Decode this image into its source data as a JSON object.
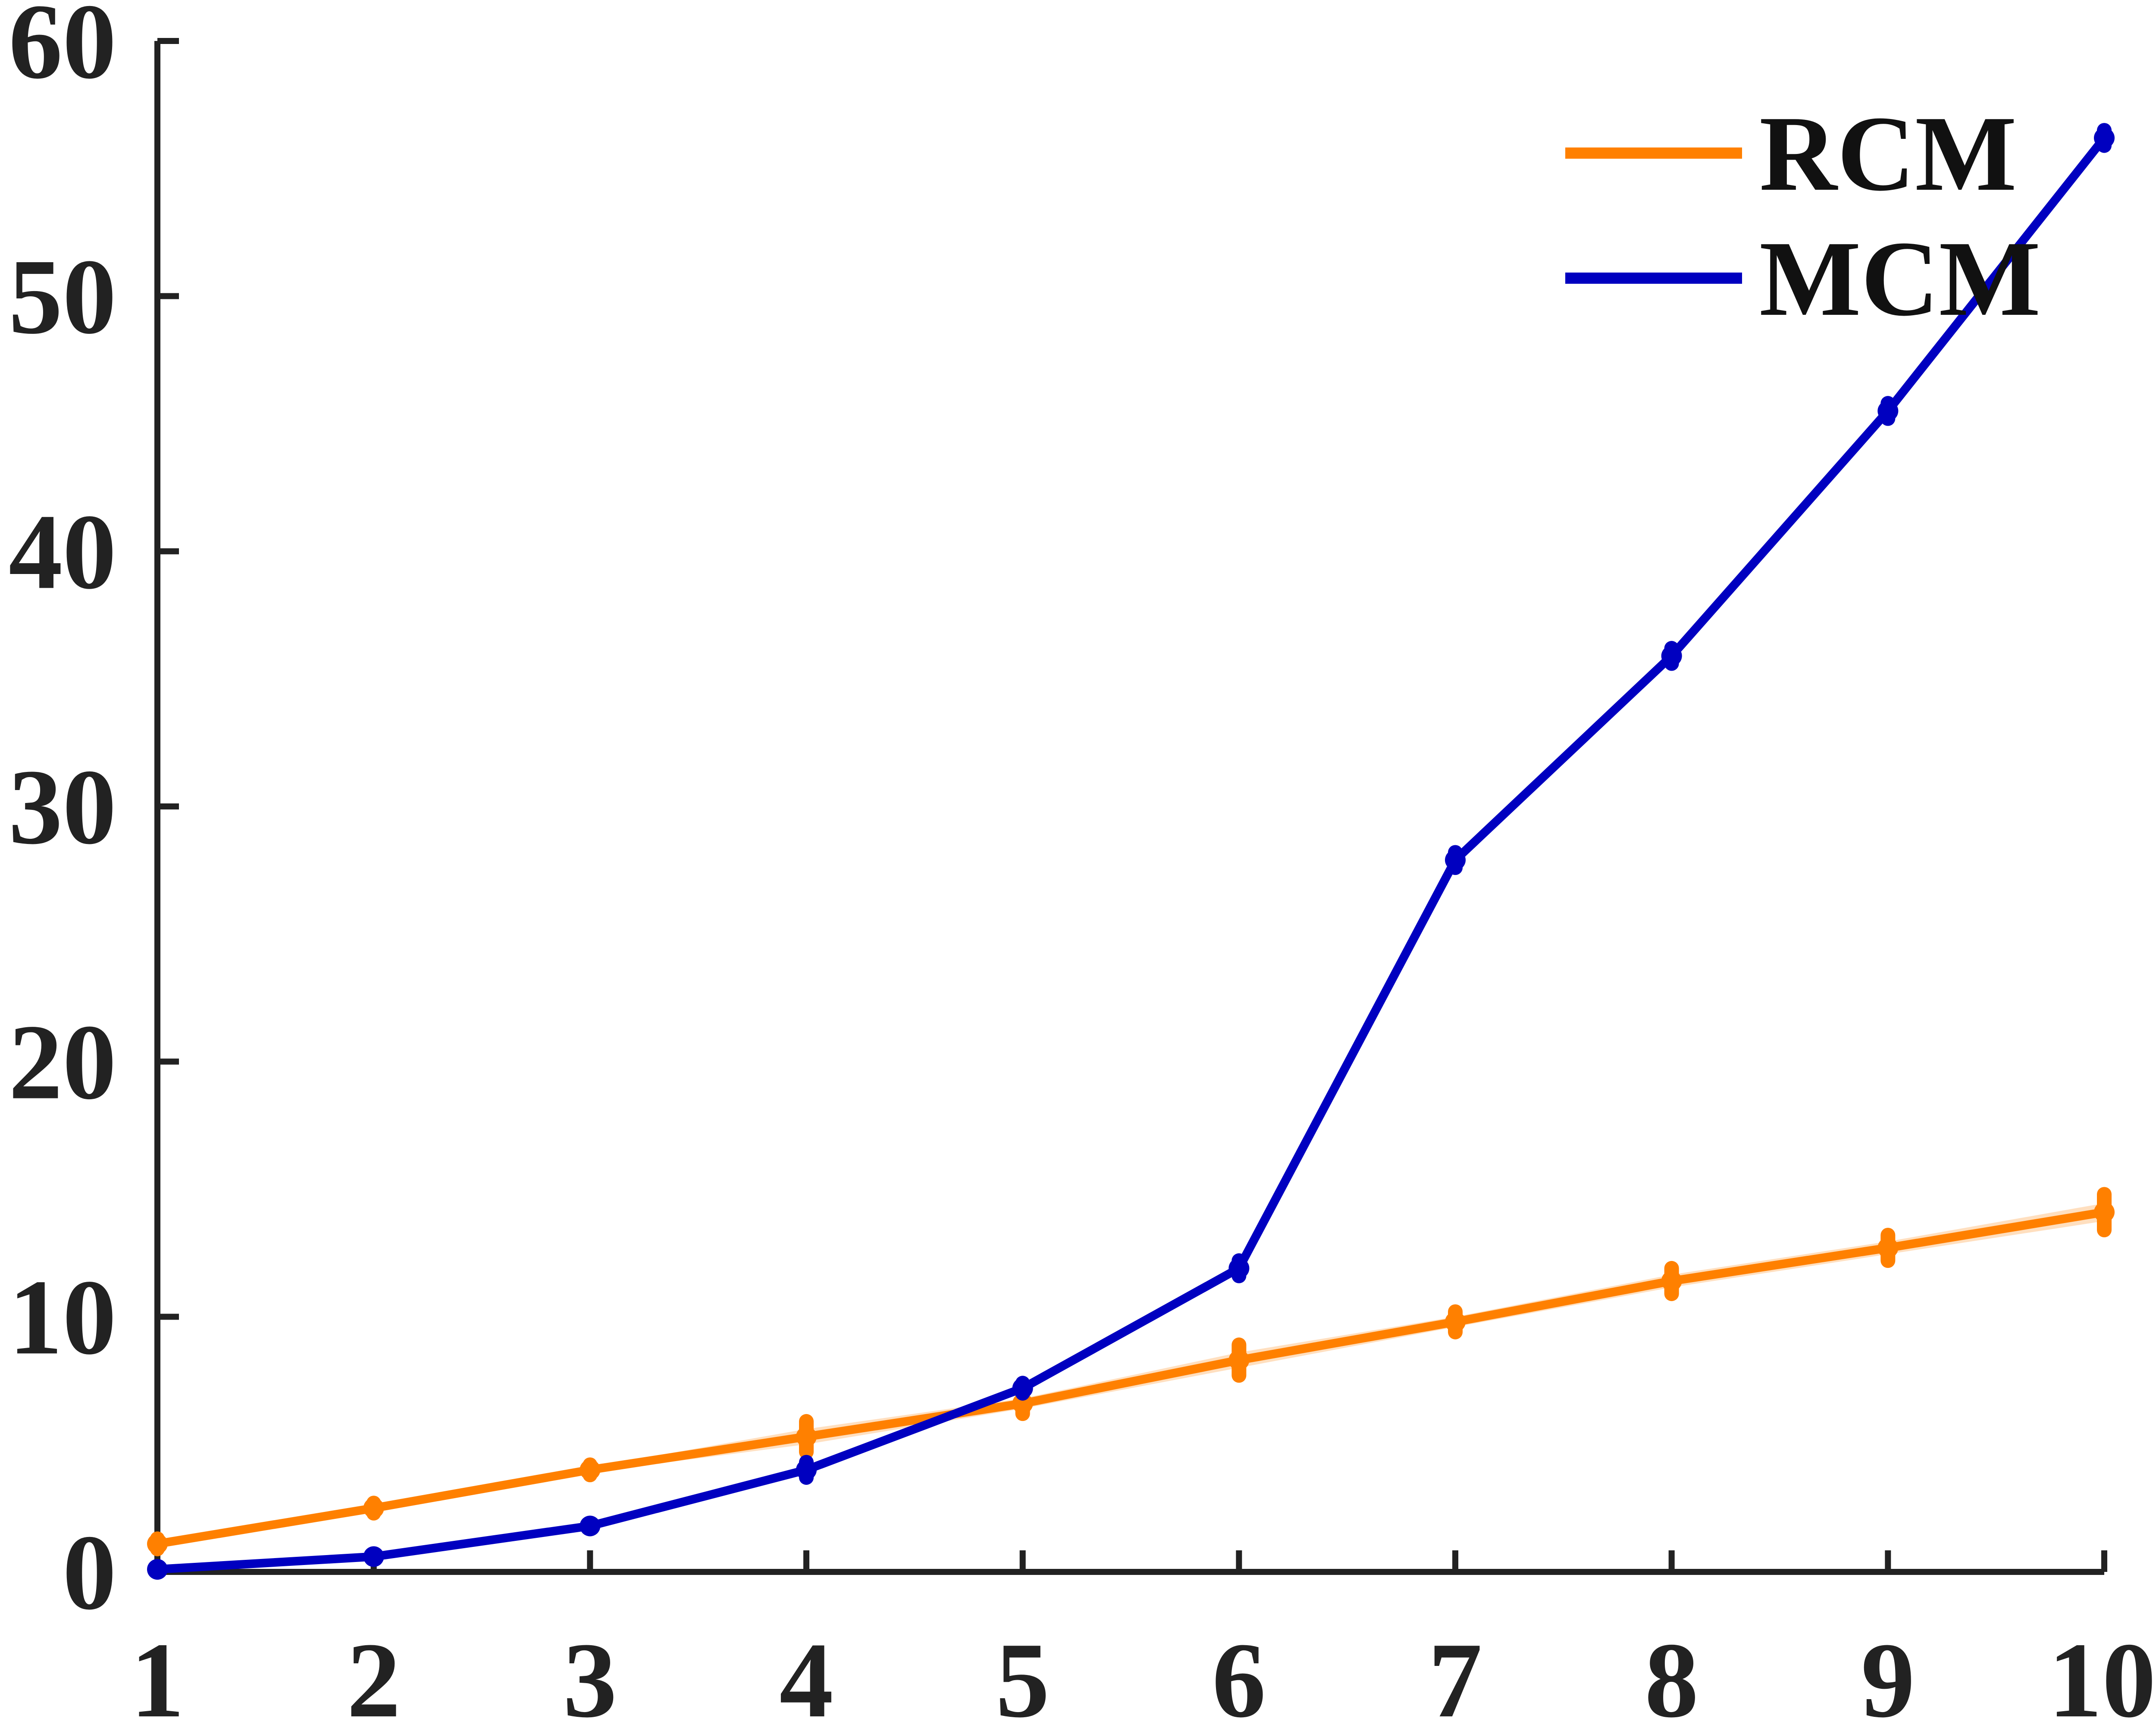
{
  "chart_data": {
    "type": "line",
    "title": "",
    "xlabel": "",
    "ylabel": "",
    "x": [
      1,
      2,
      3,
      4,
      5,
      6,
      7,
      8,
      9,
      10
    ],
    "xlim": [
      1,
      10
    ],
    "ylim": [
      0,
      60
    ],
    "xticks": [
      "1",
      "2",
      "3",
      "4",
      "5",
      "6",
      "7",
      "8",
      "9",
      "10"
    ],
    "yticks": [
      "0",
      "10",
      "20",
      "30",
      "40",
      "50",
      "60"
    ],
    "grid": false,
    "legend_position": "top-right",
    "series": [
      {
        "name": "RCM",
        "color": "#ff8000",
        "values": [
          1.1,
          2.5,
          4.0,
          5.3,
          6.6,
          8.3,
          9.8,
          11.4,
          12.7,
          14.1
        ],
        "errors": [
          0.2,
          0.2,
          0.2,
          0.6,
          0.4,
          0.6,
          0.4,
          0.5,
          0.5,
          0.7
        ]
      },
      {
        "name": "MCM",
        "color": "#0000c0",
        "values": [
          0.1,
          0.6,
          1.8,
          4.0,
          7.2,
          11.9,
          27.9,
          35.9,
          45.5,
          56.2
        ],
        "errors": [
          0.1,
          0.1,
          0.1,
          0.3,
          0.2,
          0.3,
          0.3,
          0.3,
          0.3,
          0.3
        ]
      }
    ]
  }
}
